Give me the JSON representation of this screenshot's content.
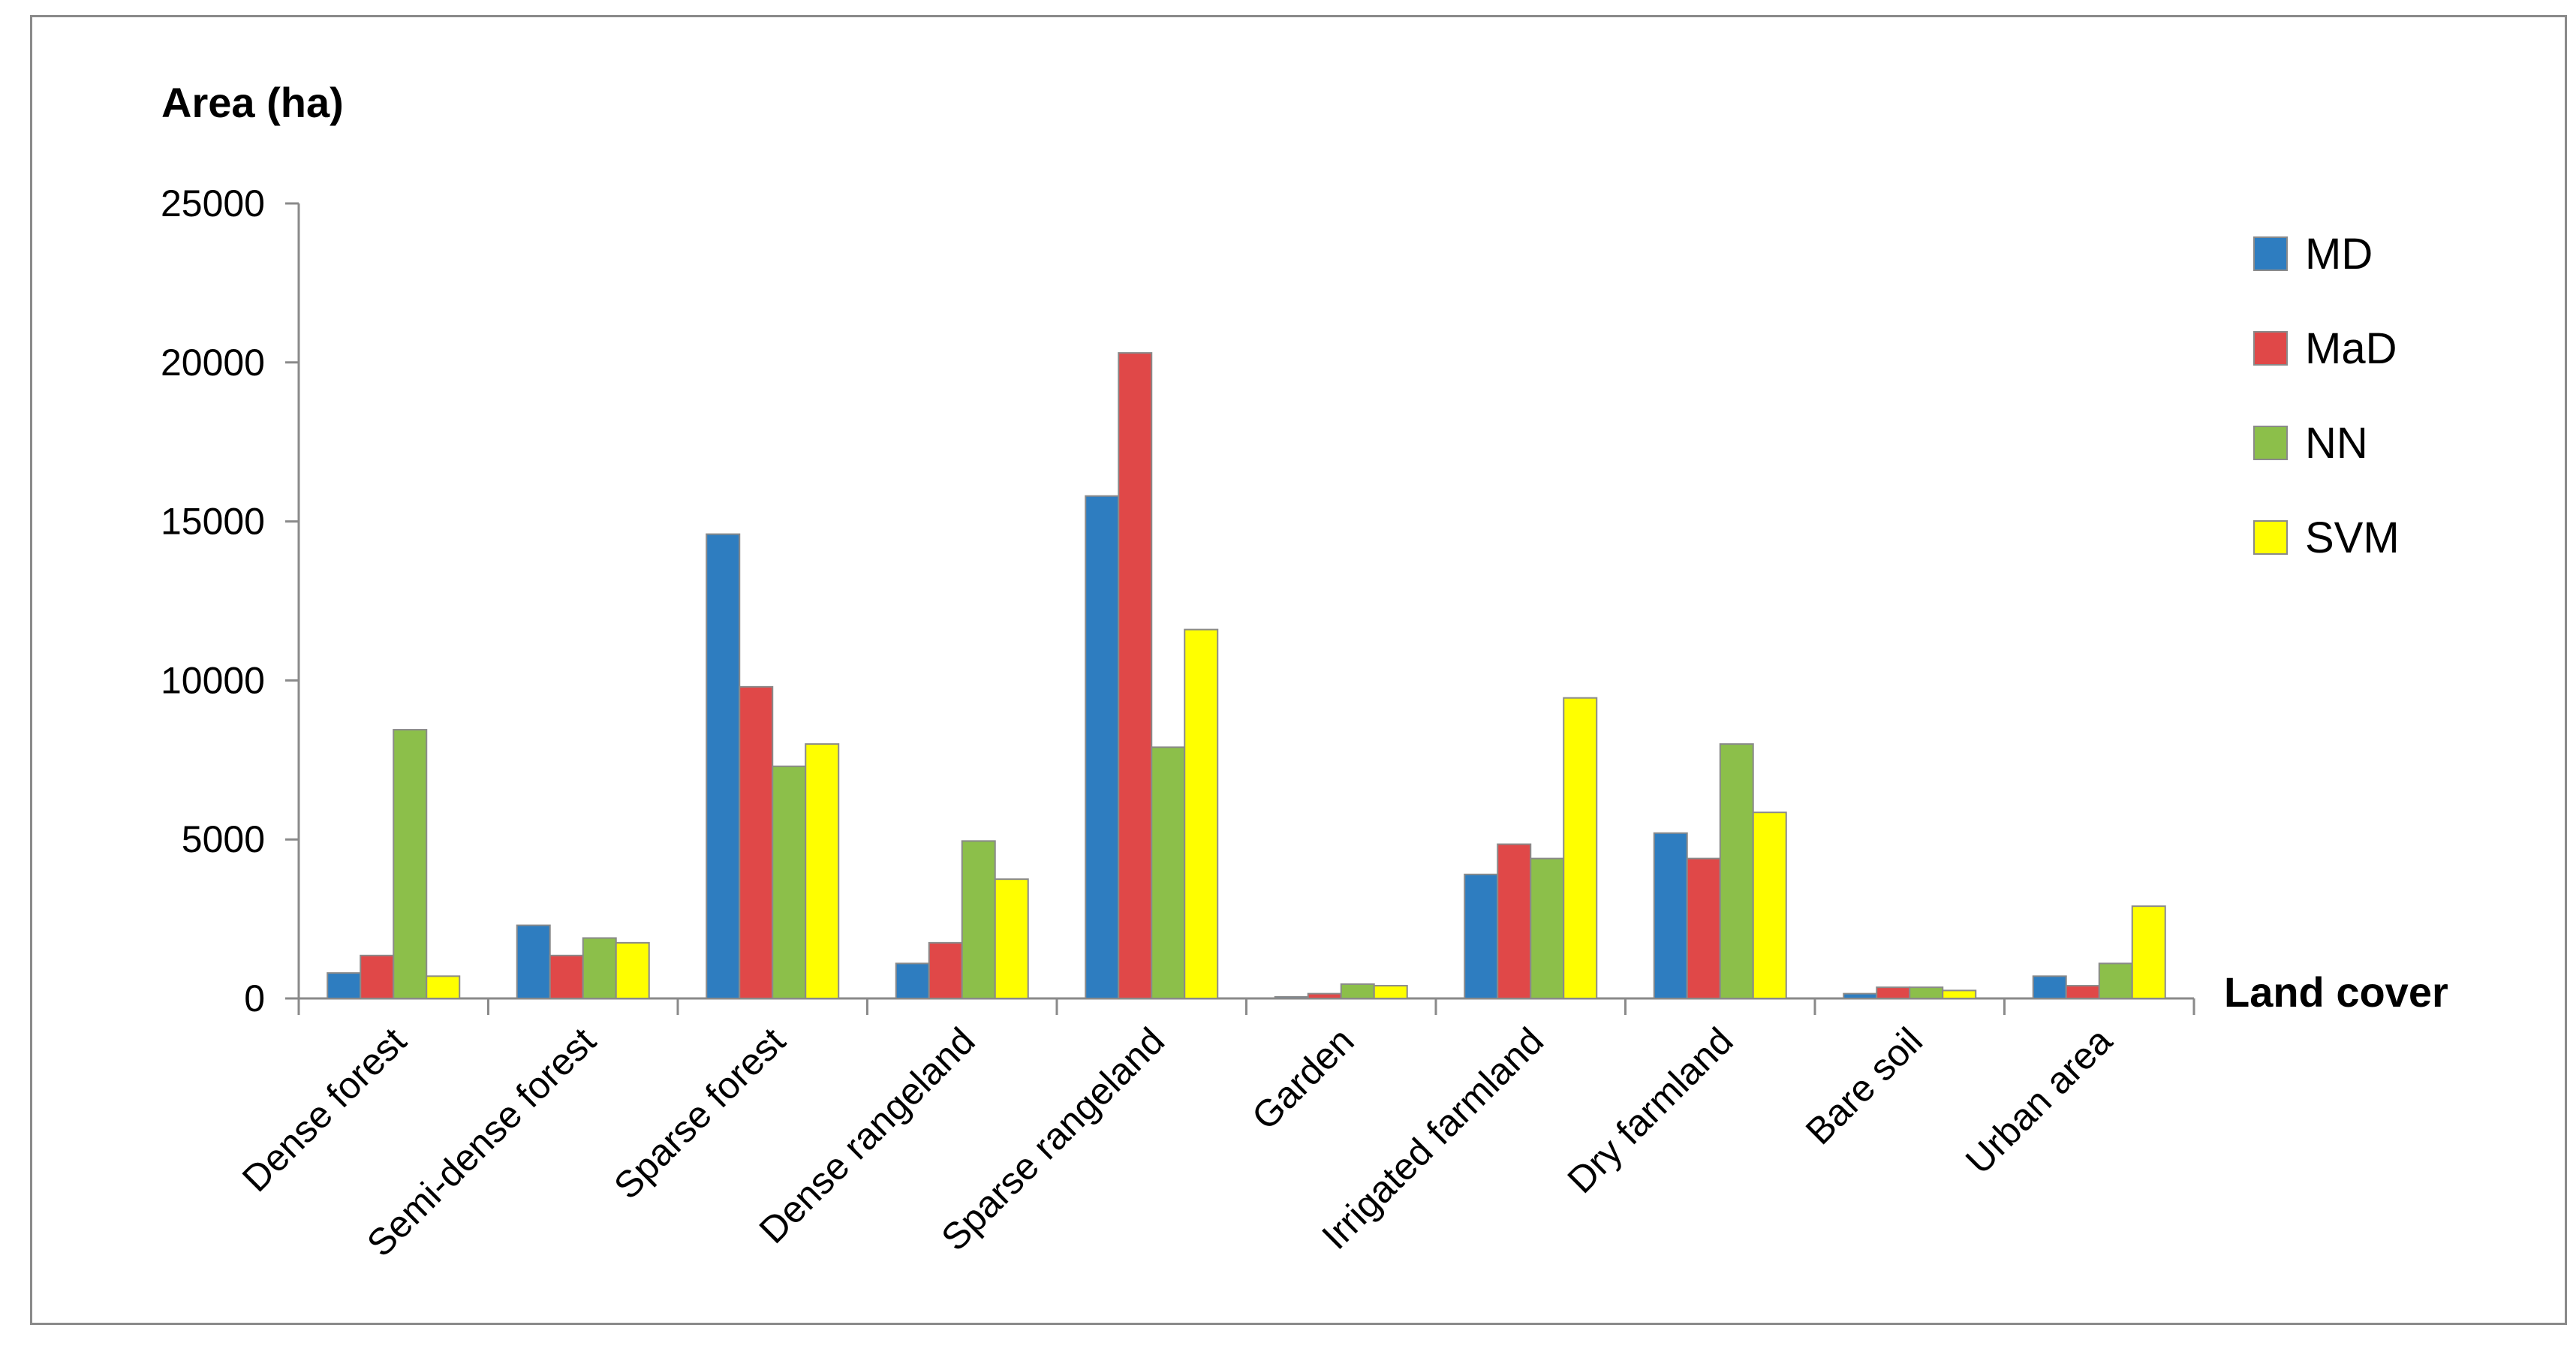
{
  "chart_data": {
    "type": "bar",
    "ylabel": "Area (ha)",
    "xlabel": "Land cover",
    "ylim": [
      0,
      25000
    ],
    "yticks": [
      0,
      5000,
      10000,
      15000,
      20000,
      25000
    ],
    "grid": false,
    "legend_position": "right",
    "categories": [
      "Dense forest",
      "Semi-dense forest",
      "Sparse forest",
      "Dense rangeland",
      "Sparse rangeland",
      "Garden",
      "Irrigated farmland",
      "Dry farmland",
      "Bare soil",
      "Urban area"
    ],
    "series": [
      {
        "name": "MD",
        "color": "#2e7dc0",
        "values": [
          800,
          2300,
          14600,
          1100,
          15800,
          50,
          3900,
          5200,
          150,
          700
        ]
      },
      {
        "name": "MaD",
        "color": "#e04848",
        "values": [
          1350,
          1350,
          9800,
          1750,
          20300,
          150,
          4850,
          4400,
          350,
          400
        ]
      },
      {
        "name": "NN",
        "color": "#8cbf4a",
        "values": [
          8450,
          1900,
          7300,
          4950,
          7900,
          450,
          4400,
          8000,
          350,
          1100
        ]
      },
      {
        "name": "SVM",
        "color": "#ffff00",
        "values": [
          700,
          1750,
          8000,
          3750,
          11600,
          400,
          9450,
          5850,
          250,
          2900
        ]
      }
    ]
  }
}
